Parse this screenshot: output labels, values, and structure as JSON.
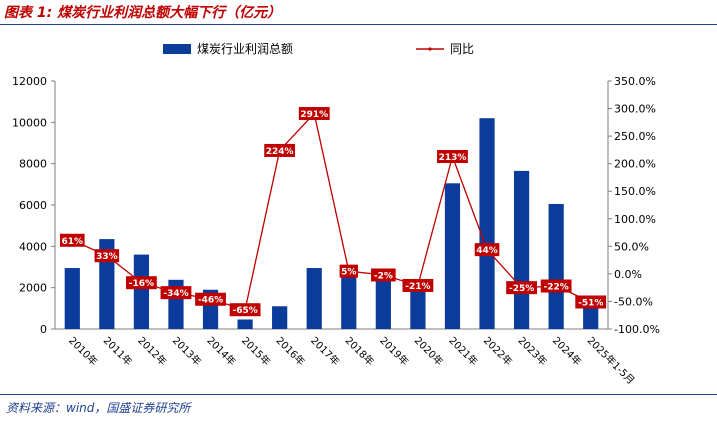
{
  "figure": {
    "title": "图表 1:  煤炭行业利润总额大幅下行（亿元）",
    "source": "资料来源：wind，国盛证券研究所"
  },
  "chart_data": {
    "type": "bar",
    "categories": [
      "2010年",
      "2011年",
      "2012年",
      "2013年",
      "2014年",
      "2015年",
      "2016年",
      "2017年",
      "2018年",
      "2019年",
      "2020年",
      "2021年",
      "2022年",
      "2023年",
      "2024年",
      "2025年1-5月"
    ],
    "series": [
      {
        "name": "煤炭行业利润总额",
        "type": "bar",
        "axis": "left",
        "values": [
          2950,
          4350,
          3600,
          2380,
          1900,
          460,
          1100,
          2950,
          2950,
          2850,
          2200,
          7050,
          10200,
          7650,
          6050,
          1350
        ]
      },
      {
        "name": "同比",
        "type": "line",
        "axis": "right",
        "values": [
          61,
          33,
          -16,
          -34,
          -46,
          -65,
          224,
          291,
          5,
          -2,
          -21,
          213,
          44,
          -25,
          -22,
          -51
        ],
        "labels": [
          "61%",
          "33%",
          "-16%",
          "-34%",
          "-46%",
          "-65%",
          "224%",
          "291%",
          "5%",
          "-2%",
          "-21%",
          "213%",
          "44%",
          "-25%",
          "-22%",
          "-51%"
        ]
      }
    ],
    "y_left": {
      "min": 0,
      "max": 12000,
      "ticks": [
        0,
        2000,
        4000,
        6000,
        8000,
        10000,
        12000
      ],
      "tick_labels": [
        "0",
        "2000",
        "4000",
        "6000",
        "8000",
        "10000",
        "12000"
      ]
    },
    "y_right": {
      "min": -100,
      "max": 350,
      "ticks": [
        -100,
        -50,
        0,
        50,
        100,
        150,
        200,
        250,
        300,
        350
      ],
      "tick_labels": [
        "-100.0%",
        "-50.0%",
        "0.0%",
        "50.0%",
        "100.0%",
        "150.0%",
        "200.0%",
        "250.0%",
        "300.0%",
        "350.0%"
      ]
    },
    "legend": {
      "position": "top",
      "items": [
        "煤炭行业利润总额",
        "同比"
      ]
    },
    "grid": false,
    "colors": {
      "bar": "#0b3b9b",
      "line": "#c00000",
      "label_bg": "#c00000",
      "label_text": "#ffffff"
    }
  }
}
